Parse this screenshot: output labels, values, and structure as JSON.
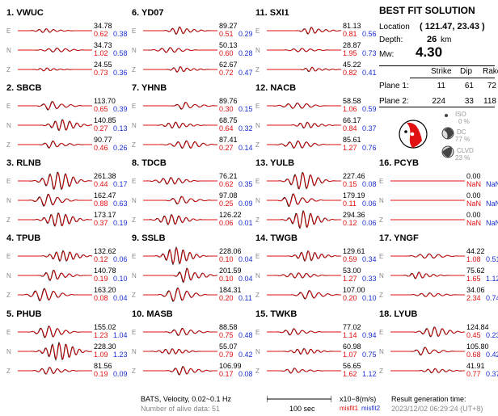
{
  "chart_data": {
    "type": "line",
    "title": "BEST FIT SOLUTION",
    "location_label": "Location",
    "location_value": "( 121.47, 23.43 )",
    "depth_label": "Depth:",
    "depth_value": "26",
    "depth_unit": "km",
    "mw_label": "Mw:",
    "mw_value": "4.30",
    "plane_headers": [
      "Strike",
      "Dip",
      "Rake"
    ],
    "planes": [
      {
        "label": "Plane 1:",
        "strike": "11",
        "dip": "61",
        "rake": "72"
      },
      {
        "label": "Plane 2:",
        "strike": "224",
        "dip": "33",
        "rake": "118"
      }
    ],
    "components": [
      {
        "label": "ISO",
        "value": "0 %"
      },
      {
        "label": "DC",
        "value": "77 %"
      },
      {
        "label": "CLVD",
        "value": "23 %"
      }
    ],
    "channels": [
      "E",
      "N",
      "Z"
    ],
    "stations": [
      {
        "name": "1.  VWUC",
        "ch": [
          [
            "34.78",
            "0.62",
            "0.38"
          ],
          [
            "34.73",
            "1.02",
            "0.58"
          ],
          [
            "24.55",
            "0.73",
            "0.36"
          ]
        ]
      },
      {
        "name": "2.  SBCB",
        "ch": [
          [
            "113.70",
            "0.65",
            "0.39"
          ],
          [
            "140.85",
            "0.27",
            "0.13"
          ],
          [
            "90.77",
            "0.46",
            "0.26"
          ]
        ]
      },
      {
        "name": "3.  RLNB",
        "ch": [
          [
            "261.38",
            "0.44",
            "0.17"
          ],
          [
            "162.47",
            "0.88",
            "0.63"
          ],
          [
            "173.17",
            "0.37",
            "0.19"
          ]
        ]
      },
      {
        "name": "4.  TPUB",
        "ch": [
          [
            "132.62",
            "0.12",
            "0.06"
          ],
          [
            "140.78",
            "0.19",
            "0.10"
          ],
          [
            "163.20",
            "0.08",
            "0.04"
          ]
        ]
      },
      {
        "name": "5.  PHUB",
        "ch": [
          [
            "155.02",
            "1.23",
            "1.04"
          ],
          [
            "228.30",
            "1.09",
            "1.23"
          ],
          [
            "81.56",
            "0.19",
            "0.09"
          ]
        ]
      },
      {
        "name": "6.  YD07",
        "ch": [
          [
            "89.27",
            "0.51",
            "0.29"
          ],
          [
            "50.13",
            "0.60",
            "0.28"
          ],
          [
            "62.67",
            "0.72",
            "0.47"
          ]
        ]
      },
      {
        "name": "7.  YHNB",
        "ch": [
          [
            "89.76",
            "0.30",
            "0.15"
          ],
          [
            "68.75",
            "0.64",
            "0.32"
          ],
          [
            "87.41",
            "0.27",
            "0.14"
          ]
        ]
      },
      {
        "name": "8.  TDCB",
        "ch": [
          [
            "76.21",
            "0.62",
            "0.35"
          ],
          [
            "97.08",
            "0.25",
            "0.09"
          ],
          [
            "126.22",
            "0.06",
            "0.01"
          ]
        ]
      },
      {
        "name": "9.  SSLB",
        "ch": [
          [
            "228.06",
            "0.10",
            "0.04"
          ],
          [
            "201.59",
            "0.10",
            "0.04"
          ],
          [
            "184.31",
            "0.20",
            "0.11"
          ]
        ]
      },
      {
        "name": "10. MASB",
        "ch": [
          [
            "88.58",
            "0.75",
            "0.48"
          ],
          [
            "55.07",
            "0.79",
            "0.42"
          ],
          [
            "106.99",
            "0.17",
            "0.08"
          ]
        ]
      },
      {
        "name": "11. SXI1",
        "ch": [
          [
            "81.13",
            "0.81",
            "0.56"
          ],
          [
            "28.87",
            "1.95",
            "0.73"
          ],
          [
            "45.22",
            "0.82",
            "0.41"
          ]
        ]
      },
      {
        "name": "12. NACB",
        "ch": [
          [
            "58.58",
            "1.06",
            "0.59"
          ],
          [
            "66.17",
            "0.84",
            "0.37"
          ],
          [
            "85.61",
            "1.27",
            "0.76"
          ]
        ]
      },
      {
        "name": "13. YULB",
        "ch": [
          [
            "227.46",
            "0.15",
            "0.08"
          ],
          [
            "179.19",
            "0.11",
            "0.06"
          ],
          [
            "294.36",
            "0.12",
            "0.06"
          ]
        ]
      },
      {
        "name": "14. TWGB",
        "ch": [
          [
            "129.61",
            "0.59",
            "0.34"
          ],
          [
            "53.00",
            "1.27",
            "0.33"
          ],
          [
            "107.00",
            "0.20",
            "0.10"
          ]
        ]
      },
      {
        "name": "15. TWKB",
        "ch": [
          [
            "77.02",
            "1.14",
            "0.94"
          ],
          [
            "60.98",
            "1.07",
            "0.75"
          ],
          [
            "56.65",
            "1.62",
            "1.12"
          ]
        ]
      },
      {
        "name": "16. PCYB",
        "ch": [
          [
            "0.00",
            "NaN",
            "NaN"
          ],
          [
            "0.00",
            "NaN",
            "NaN"
          ],
          [
            "0.00",
            "NaN",
            "NaN"
          ]
        ]
      },
      {
        "name": "17. YNGF",
        "ch": [
          [
            "44.22",
            "1.08",
            "0.51"
          ],
          [
            "75.62",
            "1.65",
            "1.12"
          ],
          [
            "34.06",
            "2.34",
            "0.74"
          ]
        ]
      },
      {
        "name": "18. LYUB",
        "ch": [
          [
            "124.84",
            "0.45",
            "0.23"
          ],
          [
            "105.80",
            "0.68",
            "0.42"
          ],
          [
            "41.91",
            "0.77",
            "0.37"
          ]
        ]
      }
    ]
  },
  "footer": {
    "bats": "BATS, Velocity, 0.02~0.1 Hz",
    "alive": "Number of alive data: 51",
    "scale": "100 sec",
    "units": "x10−8(m/s)",
    "misfit1": "misfit1",
    "misfit2": "misfit2",
    "result_label": "Result generation time:",
    "result_time": "2023/12/02 06:29:24 (UT+8)"
  }
}
